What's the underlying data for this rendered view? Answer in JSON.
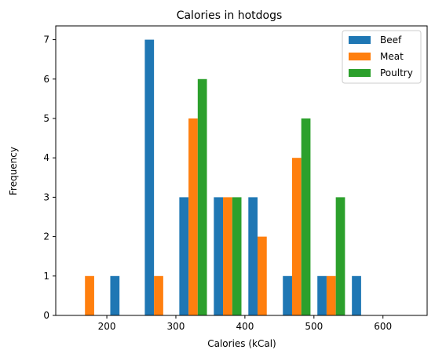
{
  "chart_data": {
    "type": "bar",
    "title": "Calories in hotdogs",
    "xlabel": "Calories (kCal)",
    "ylabel": "Frequency",
    "xlim": [
      126,
      664
    ],
    "ylim": [
      0,
      7.35
    ],
    "xticks": [
      200,
      300,
      400,
      500,
      600
    ],
    "yticks": [
      0,
      1,
      2,
      3,
      4,
      5,
      6,
      7
    ],
    "grid": false,
    "legend_position": "top-right",
    "bin_edges": [
      150,
      200,
      250,
      300,
      350,
      400,
      450,
      500,
      550,
      600,
      650
    ],
    "series": [
      {
        "name": "Beef",
        "color": "#1f77b4",
        "values": [
          0,
          1,
          7,
          3,
          3,
          3,
          1,
          1,
          1,
          0
        ]
      },
      {
        "name": "Meat",
        "color": "#ff7f0e",
        "values": [
          1,
          0,
          1,
          5,
          3,
          2,
          4,
          1,
          0,
          0
        ]
      },
      {
        "name": "Poultry",
        "color": "#2ca02c",
        "values": [
          0,
          0,
          0,
          6,
          3,
          0,
          5,
          3,
          0,
          0
        ]
      }
    ]
  }
}
